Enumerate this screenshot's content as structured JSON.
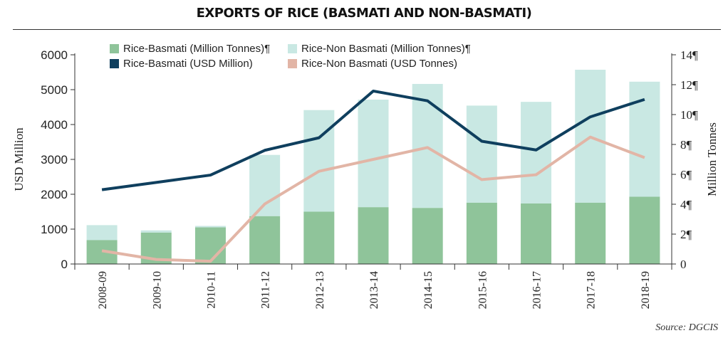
{
  "title": "EXPORTS OF RICE (BASMATI AND NON-BASMATI)",
  "source": "Source: DGCIS",
  "chart_data": {
    "type": "bar",
    "categories": [
      "2008-09",
      "2009-10",
      "2010-11",
      "2011-12",
      "2012-13",
      "2013-14",
      "2014-15",
      "2015-16",
      "2016-17",
      "2017-18",
      "2018-19"
    ],
    "ylabel": "USD Million",
    "y2label": "Million Tonnes",
    "ylim": [
      0,
      6000
    ],
    "yticks": [
      "0",
      "1000",
      "2000",
      "3000",
      "4000",
      "5000",
      "6000"
    ],
    "y2lim": [
      0,
      14
    ],
    "y2ticks": [
      "0",
      "2¶",
      "4¶",
      "6¶",
      "8¶",
      "10¶",
      "12¶",
      "14¶"
    ],
    "grid": false,
    "legend_position": "top",
    "series": [
      {
        "name": "Rice-Basmati (Million Tonnes)¶",
        "kind": "bar",
        "axis": "right",
        "stack": "base",
        "color": "#8fc49a",
        "values": [
          1.6,
          2.1,
          2.45,
          3.2,
          3.5,
          3.8,
          3.75,
          4.1,
          4.05,
          4.1,
          4.5
        ]
      },
      {
        "name": "Rice-Non Basmati (Million Tonnes)¶",
        "kind": "bar",
        "axis": "right",
        "stack": "top",
        "color": "#c9e8e3",
        "values": [
          1.0,
          0.15,
          0.1,
          4.1,
          6.8,
          7.2,
          8.3,
          6.5,
          6.8,
          8.9,
          7.7
        ]
      },
      {
        "name": "Rice-Basmati (USD Million)",
        "kind": "line",
        "axis": "left",
        "color": "#0f3f5e",
        "values": [
          2130,
          2340,
          2550,
          3260,
          3620,
          4960,
          4680,
          3520,
          3270,
          4220,
          4720
        ]
      },
      {
        "name": "Rice-Non Basmati (USD Tonnes)",
        "kind": "line",
        "axis": "left",
        "color": "#e2b5a6",
        "values": [
          380,
          130,
          80,
          1720,
          2660,
          3000,
          3340,
          2420,
          2560,
          3640,
          3050
        ]
      }
    ]
  }
}
